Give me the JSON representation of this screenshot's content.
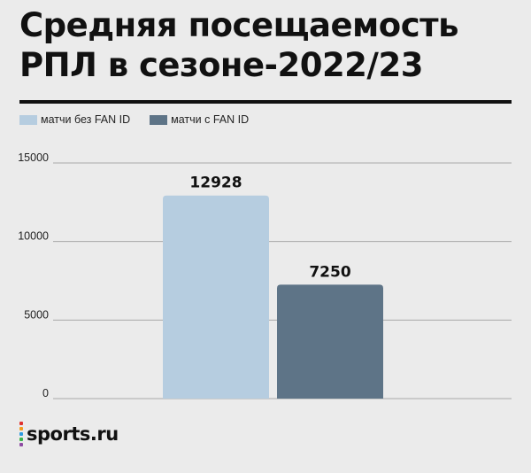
{
  "chart_data": {
    "type": "bar",
    "title": "Средняя посещаемость РПЛ в сезоне-2022/23",
    "xlabel": "",
    "ylabel": "",
    "ylim": [
      0,
      15000
    ],
    "yticks": [
      "0",
      "5000",
      "10000",
      "15000"
    ],
    "grid": true,
    "legend_position": "top-left",
    "series": [
      {
        "name": "матчи без FAN ID",
        "value": 12928,
        "label": "12928",
        "color": "#b6cde0"
      },
      {
        "name": "матчи с FAN ID",
        "value": 7250,
        "label": "7250",
        "color": "#5e7487"
      }
    ]
  },
  "logo": {
    "text": "sports.ru",
    "icon": "sports-ru-dots-icon",
    "dot_colors": [
      "#e0312f",
      "#f29c1f",
      "#2e9be0",
      "#3cb54a",
      "#8e4ba3"
    ]
  },
  "colors": {
    "background": "#ebebeb",
    "grid": "#a9a9a9",
    "text": "#111111"
  }
}
